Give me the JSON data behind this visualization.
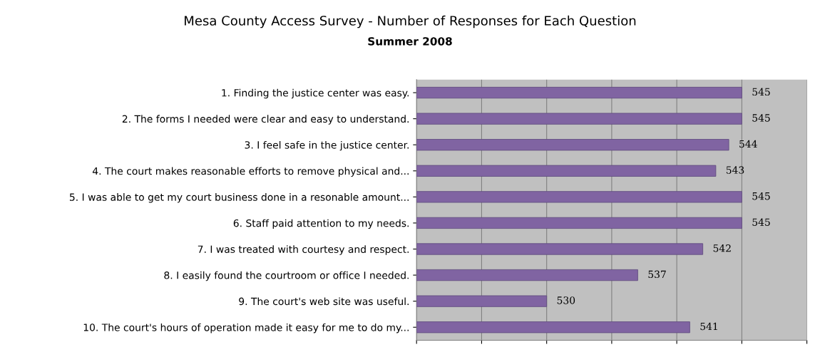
{
  "chart_data": {
    "type": "bar",
    "orientation": "horizontal",
    "title": "Mesa County Access Survey - Number of Responses for Each Question",
    "subtitle": "Summer 2008",
    "categories": [
      "1. Finding the justice center was easy.",
      "2. The forms I needed were clear and easy to understand.",
      "3. I feel safe in the justice center.",
      "4. The court makes reasonable efforts to remove physical and...",
      "5. I was able to get my court business done in a resonable amount...",
      "6. Staff paid attention to my needs.",
      "7. I was treated with courtesy and respect.",
      "8. I easily found the courtroom or office I needed.",
      "9. The court's web site was useful.",
      "10. The court's hours of operation made it easy for me to do my..."
    ],
    "values": [
      545,
      545,
      544,
      543,
      545,
      545,
      542,
      537,
      530,
      541
    ],
    "color": "#8064a2",
    "data_labels": true,
    "grid": "x",
    "tick_labels": "y",
    "xlim": [
      520,
      550
    ],
    "xticks": [
      {
        "value": 520,
        "label": null
      },
      {
        "value": 525,
        "label": null
      },
      {
        "value": 530,
        "label": null
      },
      {
        "value": 535,
        "label": null
      },
      {
        "value": 540,
        "label": null
      },
      {
        "value": 545,
        "label": null
      },
      {
        "value": 550,
        "label": null
      }
    ]
  }
}
